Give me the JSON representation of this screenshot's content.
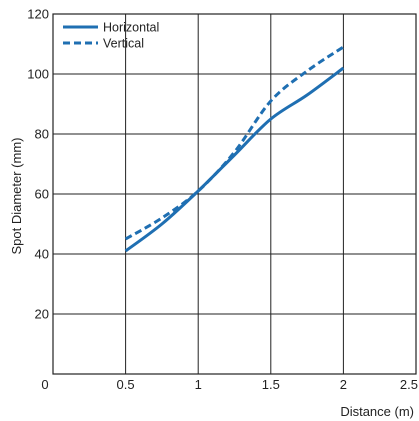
{
  "chart_data": {
    "type": "line",
    "xlabel": "Distance (m)",
    "ylabel": "Spot Diameter (mm)",
    "xlim": [
      0,
      2.5
    ],
    "ylim": [
      0,
      120
    ],
    "x_ticks": [
      "0",
      "0.5",
      "1",
      "1.5",
      "2",
      "2.5"
    ],
    "y_ticks": [
      "20",
      "40",
      "60",
      "80",
      "100",
      "120"
    ],
    "grid": true,
    "legend_position": "top-left",
    "series": [
      {
        "name": "Horizontal",
        "style": "solid",
        "color": "#1f6fb2",
        "x": [
          0.5,
          0.75,
          1.0,
          1.25,
          1.5,
          1.75,
          2.0
        ],
        "y": [
          41,
          50,
          61,
          73,
          85,
          93,
          102
        ]
      },
      {
        "name": "Vertical",
        "style": "dashed",
        "color": "#1f6fb2",
        "x": [
          0.5,
          0.75,
          1.0,
          1.25,
          1.5,
          1.75,
          2.0
        ],
        "y": [
          45,
          52,
          61,
          74,
          91,
          101,
          109
        ]
      }
    ]
  }
}
